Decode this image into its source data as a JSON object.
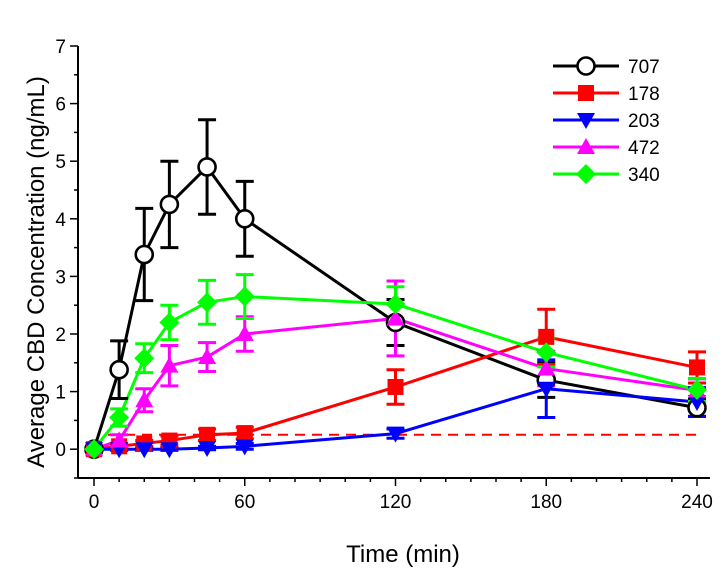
{
  "chart_data": {
    "type": "line",
    "title": "",
    "xlabel": "Time (min)",
    "ylabel": "Average CBD Concentration (ng/mL)",
    "xlim": [
      -5,
      245
    ],
    "ylim": [
      -0.5,
      7
    ],
    "xticks": [
      0,
      60,
      120,
      180,
      240
    ],
    "yticks": [
      0,
      1,
      2,
      3,
      4,
      5,
      6,
      7
    ],
    "x_minor_step": 10,
    "y_minor_step": 0.5,
    "grid": false,
    "legend_position": "top-right",
    "reference_line": {
      "y": 0.25,
      "style": "dashed",
      "color": "#ff0000"
    },
    "series": [
      {
        "name": "707",
        "color": "#000000",
        "marker": "open-circle",
        "x": [
          0,
          10,
          20,
          30,
          45,
          60,
          120,
          180,
          240
        ],
        "y": [
          0,
          1.38,
          3.38,
          4.25,
          4.9,
          4.0,
          2.2,
          1.2,
          0.72
        ],
        "err": [
          0,
          0.5,
          0.8,
          0.75,
          0.82,
          0.65,
          0.4,
          0.3,
          0.15
        ]
      },
      {
        "name": "178",
        "color": "#ff0000",
        "marker": "square",
        "x": [
          0,
          10,
          20,
          30,
          45,
          60,
          120,
          180,
          240
        ],
        "y": [
          0,
          0.05,
          0.1,
          0.15,
          0.25,
          0.28,
          1.08,
          1.95,
          1.42
        ],
        "err": [
          0,
          0.05,
          0.05,
          0.08,
          0.1,
          0.1,
          0.3,
          0.48,
          0.27
        ]
      },
      {
        "name": "203",
        "color": "#0000ff",
        "marker": "down-triangle",
        "x": [
          0,
          10,
          20,
          30,
          45,
          60,
          120,
          180,
          240
        ],
        "y": [
          0,
          0.0,
          0.0,
          0.0,
          0.02,
          0.05,
          0.27,
          1.05,
          0.82
        ],
        "err": [
          0,
          0.02,
          0.02,
          0.02,
          0.03,
          0.05,
          0.08,
          0.5,
          0.25
        ]
      },
      {
        "name": "472",
        "color": "#ff00ff",
        "marker": "up-triangle",
        "x": [
          0,
          10,
          20,
          30,
          45,
          60,
          120,
          180,
          240
        ],
        "y": [
          0,
          0.15,
          0.85,
          1.45,
          1.6,
          2.0,
          2.27,
          1.4,
          1.02
        ],
        "err": [
          0,
          0.1,
          0.2,
          0.35,
          0.25,
          0.3,
          0.65,
          0.3,
          0.2
        ]
      },
      {
        "name": "340",
        "color": "#00ff00",
        "marker": "diamond",
        "x": [
          0,
          10,
          20,
          30,
          45,
          60,
          120,
          180,
          240
        ],
        "y": [
          0,
          0.55,
          1.58,
          2.2,
          2.55,
          2.65,
          2.52,
          1.68,
          1.03
        ],
        "err": [
          0,
          0.15,
          0.25,
          0.3,
          0.38,
          0.38,
          0.3,
          0.25,
          0.2
        ]
      }
    ]
  }
}
